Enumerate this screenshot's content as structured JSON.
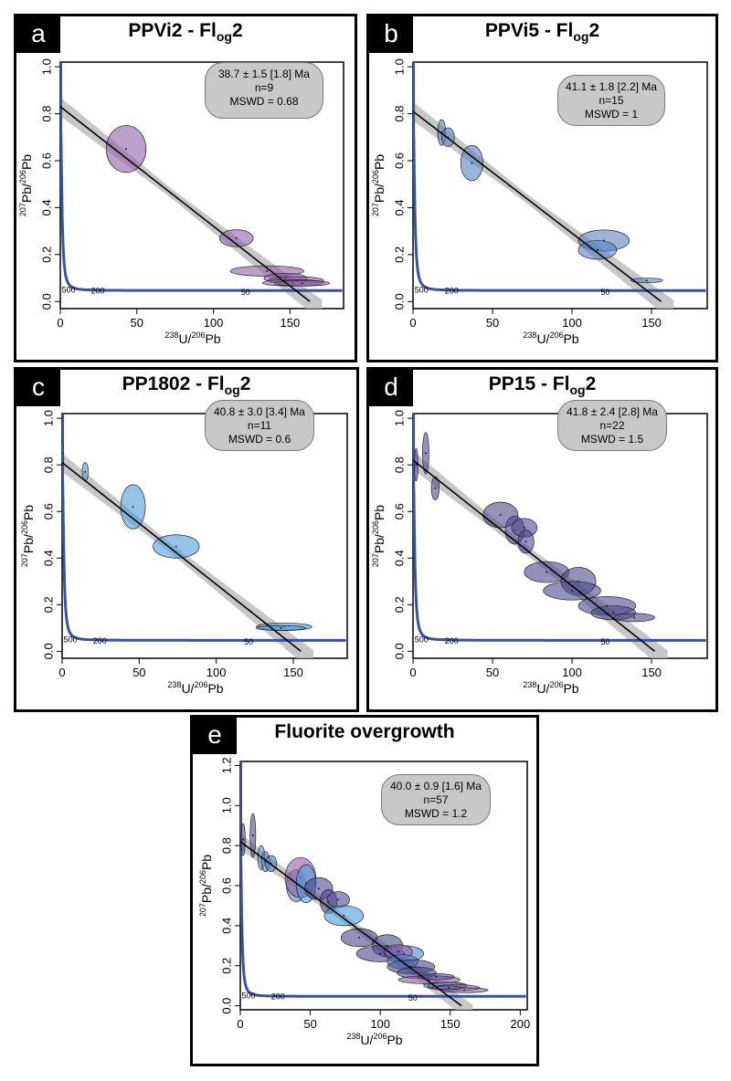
{
  "chart_data": [
    {
      "id": "a",
      "panel_letter": "a",
      "type": "scatter",
      "title": "PPVi2 - Fl",
      "title_sub": "og",
      "title_tail": "2",
      "stats": {
        "age": "38.7 ± 1.5 [1.8] Ma",
        "n": "n=9",
        "mswd": "MSWD = 0.68"
      },
      "xlim": [
        0,
        185
      ],
      "ylim": [
        -0.03,
        1.02
      ],
      "xticks": [
        "0",
        "50",
        "100",
        "150"
      ],
      "yticks": [
        "0.0",
        "0.2",
        "0.4",
        "0.6",
        "0.8",
        "1.0"
      ],
      "xlabel": "238U/206Pb",
      "ylabel": "207Pb/206Pb",
      "regression": {
        "y0": 0.83,
        "x_intercept": 163
      },
      "color": "#9060a8",
      "concordia_labels": [
        {
          "text": "500",
          "x": 1,
          "y": 0.05
        },
        {
          "text": "200",
          "x": 20,
          "y": 0.045
        },
        {
          "text": "50",
          "x": 118,
          "y": 0.04
        }
      ],
      "ellipses": [
        {
          "x": 43,
          "y": 0.65,
          "sx": 13,
          "sy": 0.1
        },
        {
          "x": 115,
          "y": 0.27,
          "sx": 11,
          "sy": 0.036
        },
        {
          "x": 135,
          "y": 0.13,
          "sx": 24,
          "sy": 0.022
        },
        {
          "x": 147,
          "y": 0.1,
          "sx": 14,
          "sy": 0.02
        },
        {
          "x": 154,
          "y": 0.09,
          "sx": 18,
          "sy": 0.016
        },
        {
          "x": 152,
          "y": 0.08,
          "sx": 20,
          "sy": 0.014
        },
        {
          "x": 158,
          "y": 0.078,
          "sx": 18,
          "sy": 0.012
        }
      ]
    },
    {
      "id": "b",
      "panel_letter": "b",
      "type": "scatter",
      "title": "PPVi5 - Fl",
      "title_sub": "og",
      "title_tail": "2",
      "stats": {
        "age": "41.1 ± 1.8 [2.2] Ma",
        "n": "n=15",
        "mswd": "MSWD = 1"
      },
      "xlim": [
        0,
        185
      ],
      "ylim": [
        -0.03,
        1.02
      ],
      "xticks": [
        "0",
        "50",
        "100",
        "150"
      ],
      "yticks": [
        "0.0",
        "0.2",
        "0.4",
        "0.6",
        "0.8",
        "1.0"
      ],
      "xlabel": "238U/206Pb",
      "ylabel": "207Pb/206Pb",
      "regression": {
        "y0": 0.81,
        "x_intercept": 156
      },
      "color": "#5a82c4",
      "concordia_labels": [
        {
          "text": "500",
          "x": 1,
          "y": 0.05
        },
        {
          "text": "200",
          "x": 20,
          "y": 0.045
        },
        {
          "text": "50",
          "x": 118,
          "y": 0.04
        }
      ],
      "ellipses": [
        {
          "x": 18,
          "y": 0.72,
          "sx": 2.5,
          "sy": 0.055
        },
        {
          "x": 22,
          "y": 0.7,
          "sx": 4,
          "sy": 0.04
        },
        {
          "x": 37,
          "y": 0.59,
          "sx": 7,
          "sy": 0.075
        },
        {
          "x": 120,
          "y": 0.26,
          "sx": 16,
          "sy": 0.045
        },
        {
          "x": 116,
          "y": 0.22,
          "sx": 12,
          "sy": 0.04
        },
        {
          "x": 147,
          "y": 0.09,
          "sx": 10,
          "sy": 0.01
        }
      ]
    },
    {
      "id": "c",
      "panel_letter": "c",
      "type": "scatter",
      "title": "PP1802 - Fl",
      "title_sub": "og",
      "title_tail": "2",
      "stats": {
        "age": "40.8 ± 3.0 [3.4] Ma",
        "n": "n=11",
        "mswd": "MSWD = 0.6"
      },
      "xlim": [
        0,
        185
      ],
      "ylim": [
        -0.03,
        1.02
      ],
      "xticks": [
        "0",
        "50",
        "100",
        "150"
      ],
      "yticks": [
        "0.0",
        "0.2",
        "0.4",
        "0.6",
        "0.8",
        "1.0"
      ],
      "xlabel": "238U/206Pb",
      "ylabel": "207Pb/206Pb",
      "regression": {
        "y0": 0.81,
        "x_intercept": 155
      },
      "color": "#4c9ed8",
      "concordia_labels": [
        {
          "text": "500",
          "x": 1,
          "y": 0.05
        },
        {
          "text": "200",
          "x": 20,
          "y": 0.045
        },
        {
          "text": "50",
          "x": 118,
          "y": 0.04
        }
      ],
      "ellipses": [
        {
          "x": 0,
          "y": 0.85,
          "sx": 1,
          "sy": 0.05
        },
        {
          "x": 15,
          "y": 0.77,
          "sx": 2,
          "sy": 0.04
        },
        {
          "x": 46,
          "y": 0.62,
          "sx": 8,
          "sy": 0.095
        },
        {
          "x": 74,
          "y": 0.45,
          "sx": 15,
          "sy": 0.05
        },
        {
          "x": 144,
          "y": 0.105,
          "sx": 18,
          "sy": 0.016
        },
        {
          "x": 142,
          "y": 0.1,
          "sx": 16,
          "sy": 0.01
        }
      ]
    },
    {
      "id": "d",
      "panel_letter": "d",
      "type": "scatter",
      "title": "PP15 - Fl",
      "title_sub": "og",
      "title_tail": "2",
      "stats": {
        "age": "41.8 ± 2.4 [2.8] Ma",
        "n": "n=22",
        "mswd": "MSWD = 1.5"
      },
      "xlim": [
        0,
        185
      ],
      "ylim": [
        -0.03,
        1.02
      ],
      "xticks": [
        "0",
        "50",
        "100",
        "150"
      ],
      "yticks": [
        "0.0",
        "0.2",
        "0.4",
        "0.6",
        "0.8",
        "1.0"
      ],
      "xlabel": "238U/206Pb",
      "ylabel": "207Pb/206Pb",
      "regression": {
        "y0": 0.82,
        "x_intercept": 152
      },
      "color": "#4a4a8c",
      "concordia_labels": [
        {
          "text": "500",
          "x": 1,
          "y": 0.05
        },
        {
          "text": "200",
          "x": 20,
          "y": 0.045
        },
        {
          "text": "50",
          "x": 118,
          "y": 0.04
        }
      ],
      "ellipses": [
        {
          "x": 2,
          "y": 0.8,
          "sx": 1.2,
          "sy": 0.07
        },
        {
          "x": 8,
          "y": 0.85,
          "sx": 2,
          "sy": 0.09
        },
        {
          "x": 14,
          "y": 0.7,
          "sx": 2.5,
          "sy": 0.05
        },
        {
          "x": 55,
          "y": 0.585,
          "sx": 11,
          "sy": 0.055
        },
        {
          "x": 64,
          "y": 0.52,
          "sx": 6,
          "sy": 0.06
        },
        {
          "x": 70,
          "y": 0.53,
          "sx": 8,
          "sy": 0.04
        },
        {
          "x": 71,
          "y": 0.47,
          "sx": 5,
          "sy": 0.05
        },
        {
          "x": 84,
          "y": 0.34,
          "sx": 14,
          "sy": 0.045
        },
        {
          "x": 104,
          "y": 0.3,
          "sx": 11,
          "sy": 0.06
        },
        {
          "x": 100,
          "y": 0.26,
          "sx": 18,
          "sy": 0.04
        },
        {
          "x": 122,
          "y": 0.195,
          "sx": 18,
          "sy": 0.04
        },
        {
          "x": 126,
          "y": 0.165,
          "sx": 14,
          "sy": 0.03
        },
        {
          "x": 139,
          "y": 0.145,
          "sx": 13,
          "sy": 0.018
        }
      ]
    },
    {
      "id": "e",
      "panel_letter": "e",
      "type": "scatter",
      "title": "Fluorite overgrowth",
      "title_sub": "",
      "title_tail": "",
      "stats": {
        "age": "40.0 ± 0.9 [1.6] Ma",
        "n": "n=57",
        "mswd": "MSWD = 1.2"
      },
      "xlim": [
        0,
        205
      ],
      "ylim": [
        -0.02,
        1.22
      ],
      "xticks": [
        "0",
        "50",
        "100",
        "150",
        "200"
      ],
      "yticks": [
        "0.0",
        "0.2",
        "0.4",
        "0.6",
        "0.8",
        "1.0",
        "1.2"
      ],
      "xlabel": "238U/206Pb",
      "ylabel": "207Pb/206Pb",
      "regression": {
        "y0": 0.82,
        "x_intercept": 158
      },
      "color": "#5a5a9a",
      "concordia_labels": [
        {
          "text": "500",
          "x": 1,
          "y": 0.05
        },
        {
          "text": "200",
          "x": 22,
          "y": 0.045
        },
        {
          "text": "50",
          "x": 120,
          "y": 0.04
        }
      ],
      "ellipses": [
        {
          "x": 2,
          "y": 0.83,
          "sx": 1.5,
          "sy": 0.08,
          "c": "#4a4a8c"
        },
        {
          "x": 9,
          "y": 0.85,
          "sx": 2,
          "sy": 0.11,
          "c": "#4a4a8c"
        },
        {
          "x": 15,
          "y": 0.74,
          "sx": 2.5,
          "sy": 0.06,
          "c": "#4c9ed8"
        },
        {
          "x": 18,
          "y": 0.72,
          "sx": 3,
          "sy": 0.05,
          "c": "#5a82c4"
        },
        {
          "x": 22,
          "y": 0.71,
          "sx": 4,
          "sy": 0.04,
          "c": "#5a82c4"
        },
        {
          "x": 40,
          "y": 0.6,
          "sx": 7,
          "sy": 0.08,
          "c": "#5a82c4"
        },
        {
          "x": 43,
          "y": 0.64,
          "sx": 11,
          "sy": 0.1,
          "c": "#9060a8"
        },
        {
          "x": 47,
          "y": 0.61,
          "sx": 7,
          "sy": 0.095,
          "c": "#4c9ed8"
        },
        {
          "x": 56,
          "y": 0.585,
          "sx": 10,
          "sy": 0.055,
          "c": "#4a4a8c"
        },
        {
          "x": 63,
          "y": 0.52,
          "sx": 6,
          "sy": 0.06,
          "c": "#4a4a8c"
        },
        {
          "x": 70,
          "y": 0.53,
          "sx": 8,
          "sy": 0.04,
          "c": "#4a4a8c"
        },
        {
          "x": 74,
          "y": 0.45,
          "sx": 14,
          "sy": 0.05,
          "c": "#4c9ed8"
        },
        {
          "x": 85,
          "y": 0.34,
          "sx": 13,
          "sy": 0.045,
          "c": "#4a4a8c"
        },
        {
          "x": 105,
          "y": 0.3,
          "sx": 11,
          "sy": 0.055,
          "c": "#4a4a8c"
        },
        {
          "x": 100,
          "y": 0.26,
          "sx": 17,
          "sy": 0.04,
          "c": "#4a4a8c"
        },
        {
          "x": 117,
          "y": 0.26,
          "sx": 14,
          "sy": 0.04,
          "c": "#5a82c4"
        },
        {
          "x": 113,
          "y": 0.27,
          "sx": 10,
          "sy": 0.035,
          "c": "#9060a8"
        },
        {
          "x": 116,
          "y": 0.22,
          "sx": 11,
          "sy": 0.035,
          "c": "#5a82c4"
        },
        {
          "x": 122,
          "y": 0.195,
          "sx": 17,
          "sy": 0.035,
          "c": "#4a4a8c"
        },
        {
          "x": 126,
          "y": 0.165,
          "sx": 14,
          "sy": 0.028,
          "c": "#4a4a8c"
        },
        {
          "x": 135,
          "y": 0.13,
          "sx": 22,
          "sy": 0.02,
          "c": "#9060a8"
        },
        {
          "x": 140,
          "y": 0.145,
          "sx": 13,
          "sy": 0.016,
          "c": "#4a4a8c"
        },
        {
          "x": 146,
          "y": 0.1,
          "sx": 15,
          "sy": 0.018,
          "c": "#4c9ed8"
        },
        {
          "x": 148,
          "y": 0.1,
          "sx": 14,
          "sy": 0.018,
          "c": "#9060a8"
        },
        {
          "x": 154,
          "y": 0.09,
          "sx": 17,
          "sy": 0.015,
          "c": "#9060a8"
        },
        {
          "x": 160,
          "y": 0.078,
          "sx": 17,
          "sy": 0.012,
          "c": "#9060a8"
        },
        {
          "x": 149,
          "y": 0.09,
          "sx": 9,
          "sy": 0.009,
          "c": "#5a82c4"
        }
      ]
    }
  ]
}
